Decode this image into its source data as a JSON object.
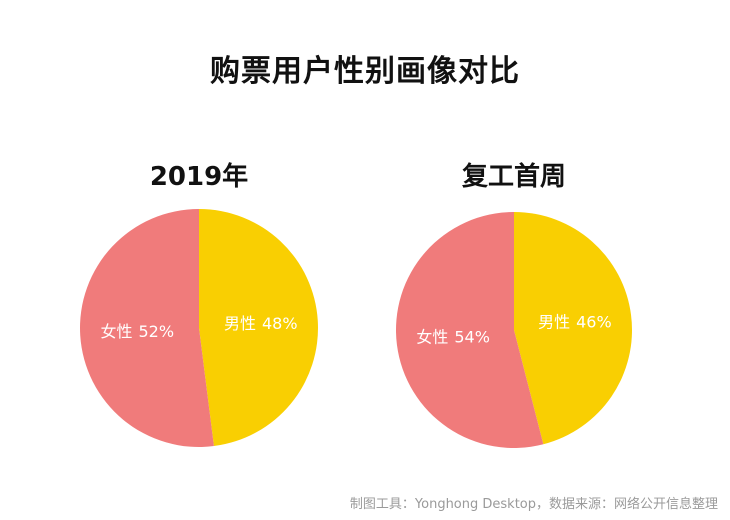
{
  "title": "购票用户性别画像对比",
  "source_note": "制图工具：Yonghong Desktop，数据来源：网络公开信息整理",
  "colors": {
    "female": "#f07b7b",
    "male": "#f9cf02",
    "label": "#ffffff"
  },
  "chart_data": [
    {
      "type": "pie",
      "title": "2019年",
      "slices": [
        {
          "label": "男性",
          "value": 48,
          "display": "48%",
          "color": "#f9cf02"
        },
        {
          "label": "女性",
          "value": 52,
          "display": "52%",
          "color": "#f07b7b"
        }
      ]
    },
    {
      "type": "pie",
      "title": "复工首周",
      "slices": [
        {
          "label": "男性",
          "value": 46,
          "display": "46%",
          "color": "#f9cf02"
        },
        {
          "label": "女性",
          "value": 54,
          "display": "54%",
          "color": "#f07b7b"
        }
      ]
    }
  ]
}
